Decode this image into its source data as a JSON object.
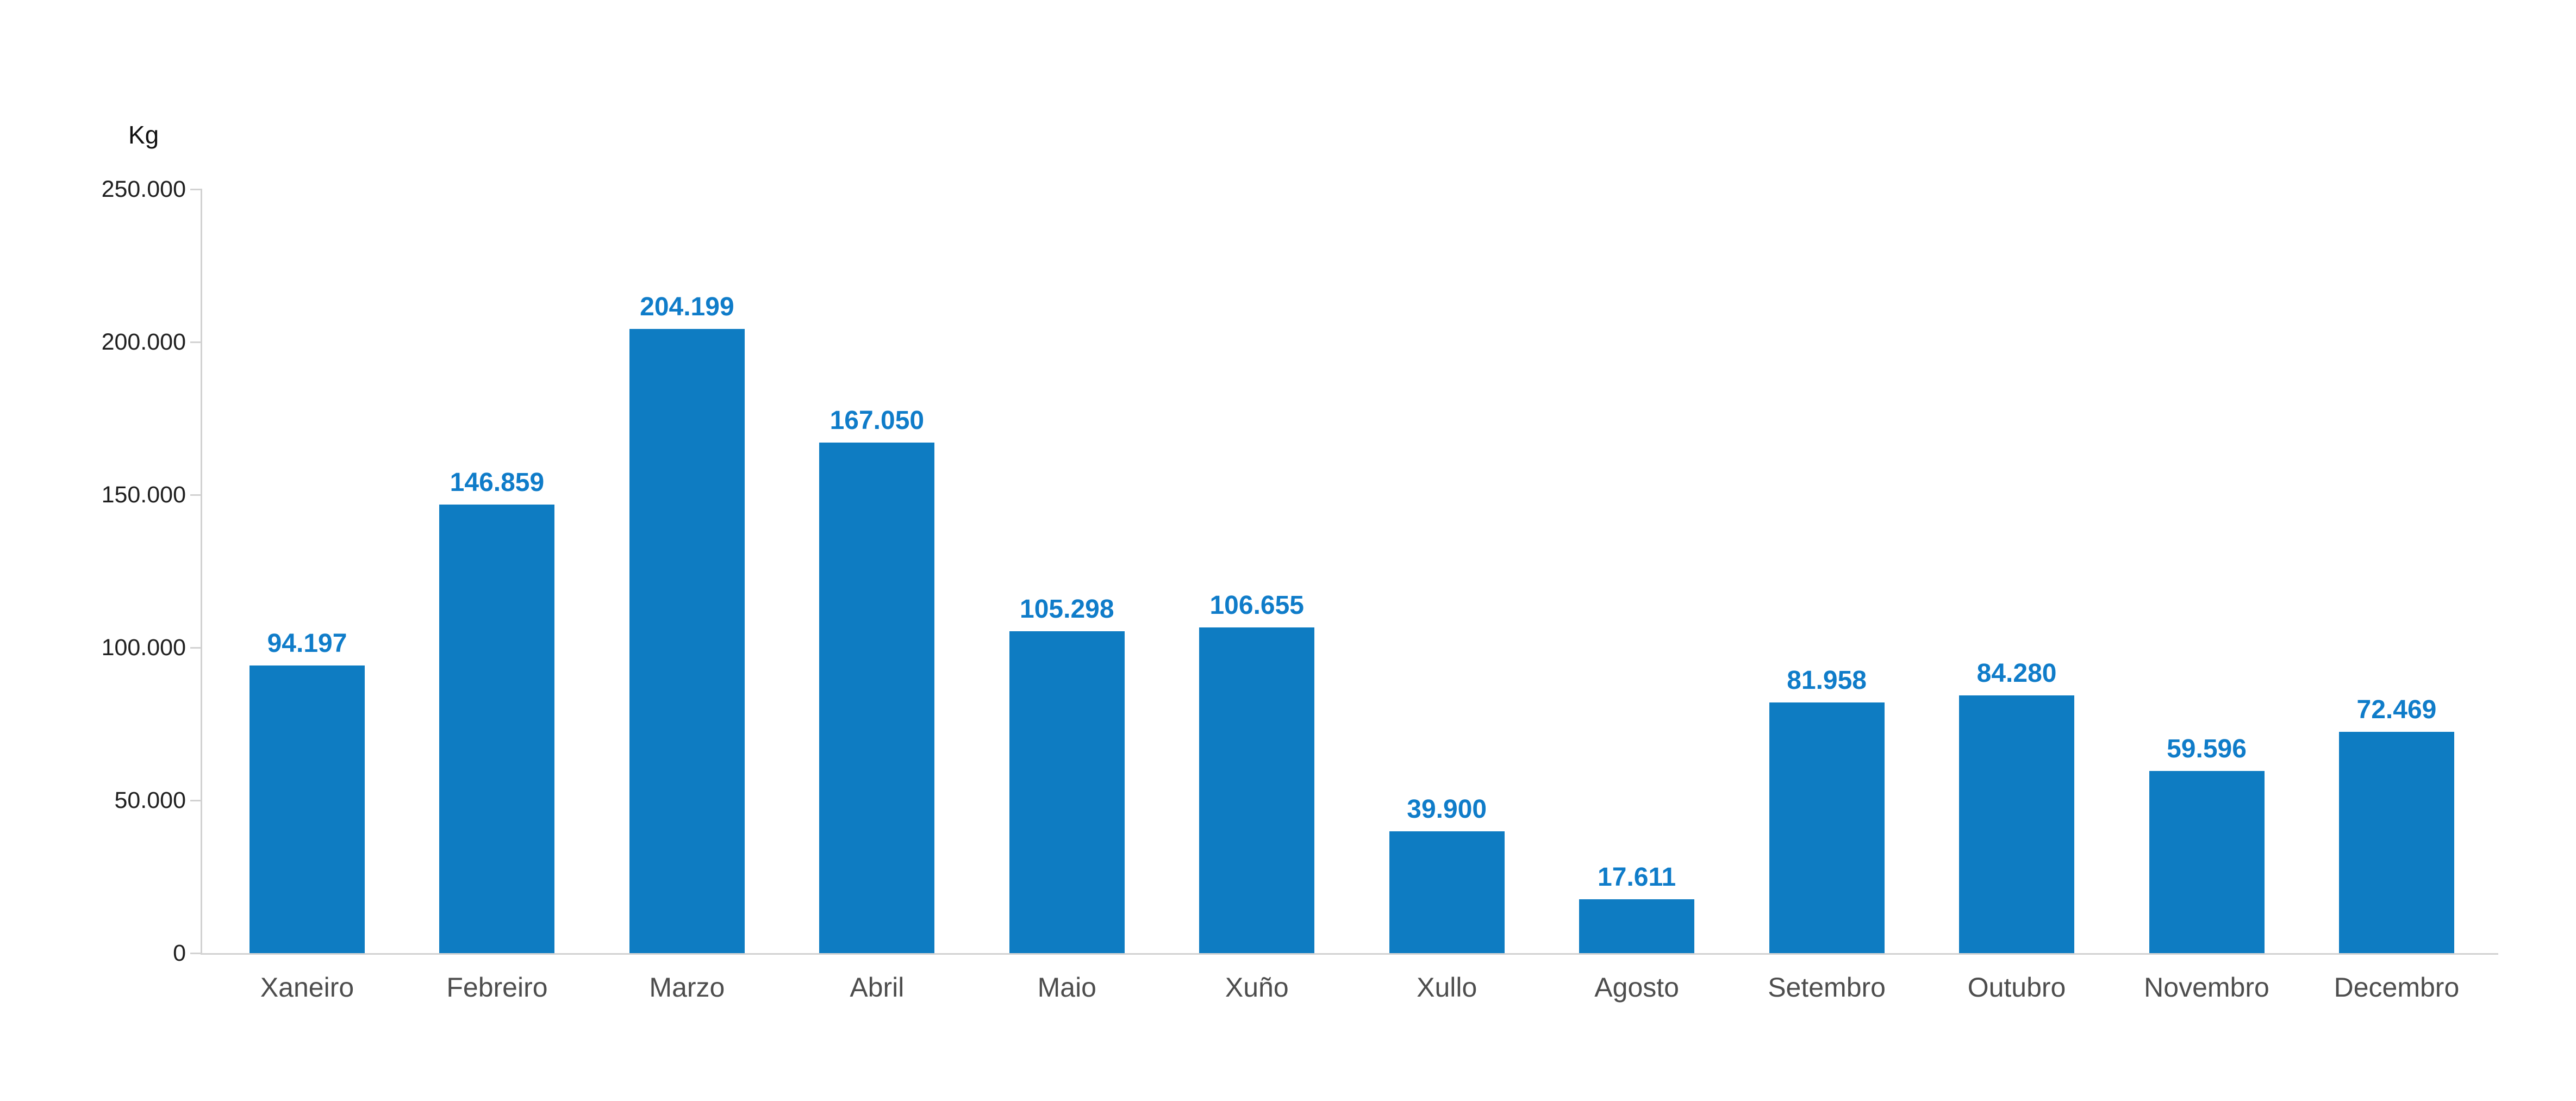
{
  "chart_data": {
    "type": "bar",
    "title": "",
    "xlabel": "",
    "ylabel": "Kg",
    "categories": [
      "Xaneiro",
      "Febreiro",
      "Marzo",
      "Abril",
      "Maio",
      "Xuño",
      "Xullo",
      "Agosto",
      "Setembro",
      "Outubro",
      "Novembro",
      "Decembro"
    ],
    "values": [
      94197,
      146859,
      204199,
      167050,
      105298,
      106655,
      39900,
      17611,
      81958,
      84280,
      59596,
      72469
    ],
    "value_labels": [
      "94.197",
      "146.859",
      "204.199",
      "167.050",
      "105.298",
      "106.655",
      "39.900",
      "17.611",
      "81.958",
      "84.280",
      "59.596",
      "72.469"
    ],
    "y_tick_labels": [
      "0",
      "50.000",
      "100.000",
      "150.000",
      "200.000",
      "250.000"
    ],
    "y_tick_values": [
      0,
      50000,
      100000,
      150000,
      200000,
      250000
    ],
    "ylim": [
      0,
      250000
    ],
    "grid": "off",
    "legend": "none",
    "colors": {
      "bar": "#0e7cc2",
      "value_label": "#0f7cc9",
      "axis": "#d2d2d2",
      "y_tick_label": "#1f1f1f",
      "x_tick_label": "#4d4d4d",
      "unit_label": "#111111"
    }
  }
}
